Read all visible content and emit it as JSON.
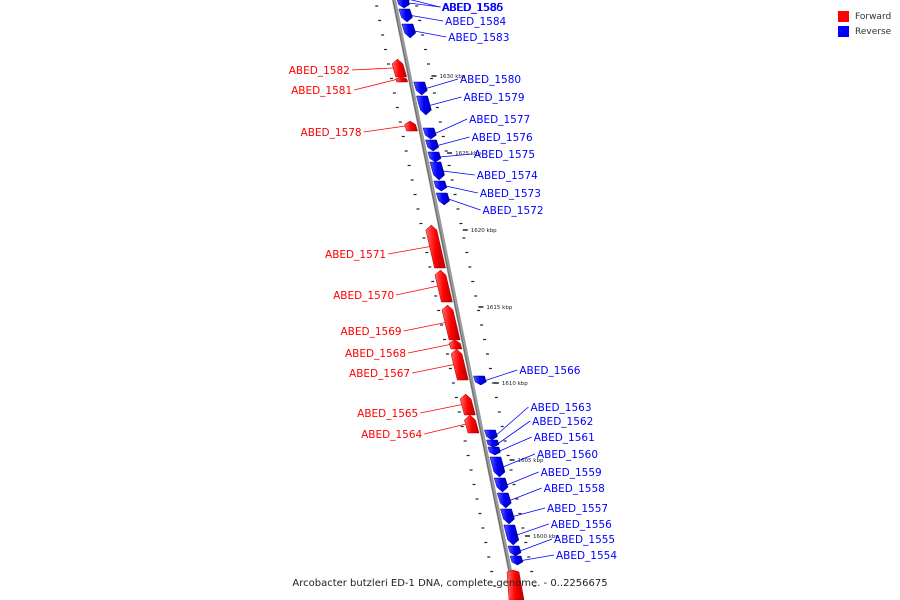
{
  "colors": {
    "forward": "#ff0000",
    "reverse": "#0000ff",
    "axis": "#888888",
    "tick": "#222222"
  },
  "legend": {
    "forward_label": "Forward",
    "reverse_label": "Reverse"
  },
  "caption": "Arcobacter butzleri ED-1 DNA, complete genome. - 0..2256675",
  "ruler_labels": [
    "1630 kbp",
    "1625 kbp",
    "1620 kbp",
    "1615 kbp",
    "1610 kbp",
    "1605 kbp",
    "1600 kbp"
  ],
  "genes": [
    {
      "name": "ABED_1586",
      "strand": "reverse"
    },
    {
      "name": "ABED_1585",
      "strand": "reverse"
    },
    {
      "name": "ABED_1584",
      "strand": "reverse"
    },
    {
      "name": "ABED_1583",
      "strand": "reverse"
    },
    {
      "name": "ABED_1582",
      "strand": "forward"
    },
    {
      "name": "ABED_1581",
      "strand": "forward"
    },
    {
      "name": "ABED_1580",
      "strand": "reverse"
    },
    {
      "name": "ABED_1579",
      "strand": "reverse"
    },
    {
      "name": "ABED_1578",
      "strand": "forward"
    },
    {
      "name": "ABED_1577",
      "strand": "reverse"
    },
    {
      "name": "ABED_1576",
      "strand": "reverse"
    },
    {
      "name": "ABED_1575",
      "strand": "reverse"
    },
    {
      "name": "ABED_1574",
      "strand": "reverse"
    },
    {
      "name": "ABED_1573",
      "strand": "reverse"
    },
    {
      "name": "ABED_1572",
      "strand": "reverse"
    },
    {
      "name": "ABED_1571",
      "strand": "forward"
    },
    {
      "name": "ABED_1570",
      "strand": "forward"
    },
    {
      "name": "ABED_1569",
      "strand": "forward"
    },
    {
      "name": "ABED_1568",
      "strand": "forward"
    },
    {
      "name": "ABED_1567",
      "strand": "forward"
    },
    {
      "name": "ABED_1566",
      "strand": "reverse"
    },
    {
      "name": "ABED_1565",
      "strand": "forward"
    },
    {
      "name": "ABED_1564",
      "strand": "forward"
    },
    {
      "name": "ABED_1563",
      "strand": "reverse"
    },
    {
      "name": "ABED_1562",
      "strand": "reverse"
    },
    {
      "name": "ABED_1561",
      "strand": "reverse"
    },
    {
      "name": "ABED_1560",
      "strand": "reverse"
    },
    {
      "name": "ABED_1559",
      "strand": "reverse"
    },
    {
      "name": "ABED_1558",
      "strand": "reverse"
    },
    {
      "name": "ABED_1557",
      "strand": "reverse"
    },
    {
      "name": "ABED_1556",
      "strand": "reverse"
    },
    {
      "name": "ABED_1555",
      "strand": "reverse"
    },
    {
      "name": "ABED_1554",
      "strand": "reverse"
    }
  ]
}
